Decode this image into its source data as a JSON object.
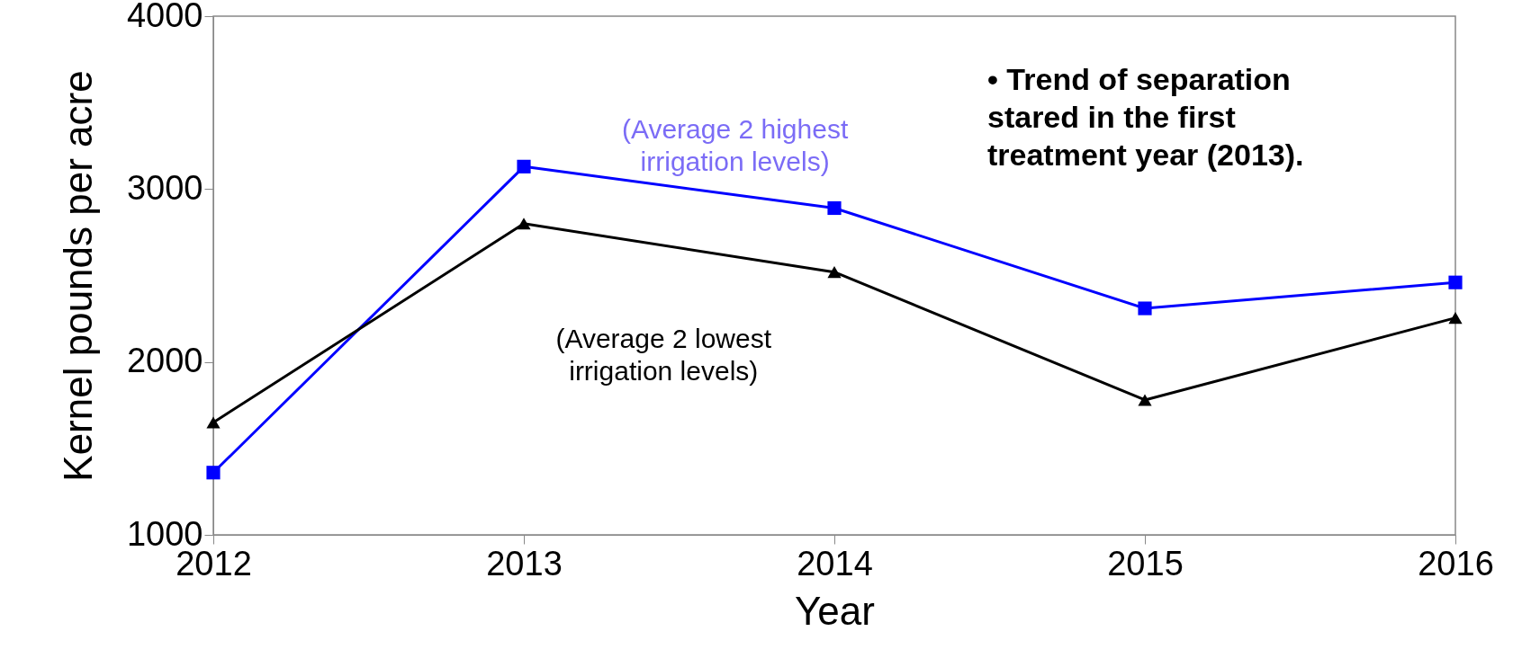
{
  "chart_data": {
    "type": "line",
    "xlabel": "Year",
    "ylabel": "Kernel pounds per acre",
    "x": [
      2012,
      2013,
      2014,
      2015,
      2016
    ],
    "xlim": [
      2012,
      2016
    ],
    "xticks": [
      2012,
      2013,
      2014,
      2015,
      2016
    ],
    "ylim": [
      1000,
      4000
    ],
    "yticks": [
      1000,
      2000,
      3000,
      4000
    ],
    "series": [
      {
        "name": "(Average 2 highest irrigation levels)",
        "color": "#0000ff",
        "marker": "square",
        "values": [
          1360,
          3130,
          2890,
          2310,
          2460
        ]
      },
      {
        "name": "(Average 2 lowest irrigation levels)",
        "color": "#000000",
        "marker": "triangle",
        "values": [
          1650,
          2800,
          2520,
          1780,
          2255
        ]
      }
    ],
    "annotations": [
      "• Trend of separation stared in the first treatment year (2013)."
    ],
    "grid": false,
    "line_style": "solid"
  }
}
